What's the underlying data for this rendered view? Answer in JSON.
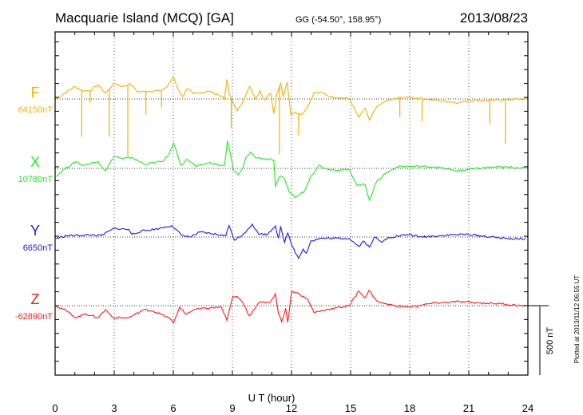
{
  "header": {
    "station": "Macquarie Island (MCQ)  [GA]",
    "coords": "GG (-54.50°, 158.95°)",
    "date": "2013/08/23"
  },
  "footer_note": "Plotted at 2013/11/12 06:55 UT",
  "chart_data": {
    "type": "line",
    "title": "Macquarie Island (MCQ)  [GA]",
    "xlabel": "U T (hour)",
    "xlim": [
      0,
      24
    ],
    "xticks": [
      "0",
      "3",
      "6",
      "9",
      "12",
      "15",
      "18",
      "21",
      "24"
    ],
    "scale_bar": {
      "label": "500 nT",
      "value_nT": 500
    },
    "grid": "dotted vertical every 3 h, dotted baseline per component",
    "y_units": "nT deviation from baseline",
    "series": [
      {
        "name": "F",
        "baseline_label": "64150nT",
        "baseline": 64150,
        "color": "#f5b000",
        "points": [
          [
            0.05,
            0
          ],
          [
            0.99,
            89
          ],
          [
            1.39,
            60
          ],
          [
            1.78,
            60
          ],
          [
            2.17,
            102
          ],
          [
            2.56,
            41
          ],
          [
            3.0,
            114
          ],
          [
            3.42,
            89
          ],
          [
            3.82,
            108
          ],
          [
            4.21,
            50
          ],
          [
            4.52,
            54
          ],
          [
            5.38,
            60
          ],
          [
            5.7,
            89
          ],
          [
            6.01,
            162
          ],
          [
            6.24,
            69
          ],
          [
            6.48,
            17
          ],
          [
            6.71,
            73
          ],
          [
            7.03,
            37
          ],
          [
            7.81,
            56
          ],
          [
            8.44,
            21
          ],
          [
            8.6,
            0
          ],
          [
            8.72,
            141
          ],
          [
            8.83,
            41
          ],
          [
            9.07,
            -37
          ],
          [
            9.25,
            -85
          ],
          [
            9.54,
            -17
          ],
          [
            9.88,
            89
          ],
          [
            10.16,
            2
          ],
          [
            10.4,
            60
          ],
          [
            10.63,
            -8
          ],
          [
            10.95,
            41
          ],
          [
            11.1,
            -104
          ],
          [
            11.26,
            41
          ],
          [
            11.45,
            118
          ],
          [
            11.57,
            21
          ],
          [
            11.78,
            121
          ],
          [
            11.97,
            -114
          ],
          [
            12.2,
            -95
          ],
          [
            12.51,
            -114
          ],
          [
            12.83,
            -56
          ],
          [
            13.14,
            44
          ],
          [
            13.61,
            44
          ],
          [
            13.92,
            17
          ],
          [
            14.94,
            2
          ],
          [
            15.41,
            -133
          ],
          [
            15.73,
            -66
          ],
          [
            15.96,
            -152
          ],
          [
            16.28,
            -66
          ],
          [
            16.75,
            -17
          ],
          [
            17.37,
            6
          ],
          [
            18.0,
            12
          ],
          [
            19.25,
            -8
          ],
          [
            20.51,
            -27
          ],
          [
            20.98,
            -12
          ],
          [
            22.23,
            -10
          ],
          [
            23.8,
            0
          ],
          [
            24,
            6
          ]
        ],
        "spikes": [
          [
            1.35,
            -272
          ],
          [
            1.78,
            -27
          ],
          [
            2.75,
            -272
          ],
          [
            3.69,
            -413
          ],
          [
            4.61,
            -114
          ],
          [
            5.4,
            -62
          ],
          [
            8.94,
            -210
          ],
          [
            11.39,
            -400
          ],
          [
            12.36,
            -259
          ],
          [
            17.5,
            -129
          ],
          [
            18.63,
            -162
          ],
          [
            22.07,
            -181
          ],
          [
            22.86,
            -322
          ]
        ]
      },
      {
        "name": "X",
        "baseline_label": "10780nT",
        "baseline": 10780,
        "color": "#22e822",
        "points": [
          [
            0.05,
            -56
          ],
          [
            0.45,
            -8
          ],
          [
            1.07,
            50
          ],
          [
            1.39,
            21
          ],
          [
            2.17,
            50
          ],
          [
            2.56,
            -17
          ],
          [
            3.0,
            89
          ],
          [
            3.42,
            69
          ],
          [
            3.89,
            79
          ],
          [
            4.52,
            31
          ],
          [
            5.46,
            50
          ],
          [
            5.77,
            98
          ],
          [
            6.01,
            183
          ],
          [
            6.4,
            21
          ],
          [
            6.71,
            66
          ],
          [
            7.18,
            12
          ],
          [
            7.81,
            41
          ],
          [
            8.44,
            21
          ],
          [
            8.6,
            21
          ],
          [
            8.75,
            199
          ],
          [
            9.07,
            -17
          ],
          [
            9.3,
            -46
          ],
          [
            9.54,
            2
          ],
          [
            9.69,
            79
          ],
          [
            9.93,
            118
          ],
          [
            10.16,
            79
          ],
          [
            10.63,
            69
          ],
          [
            11.1,
            60
          ],
          [
            11.18,
            -133
          ],
          [
            11.42,
            -56
          ],
          [
            11.65,
            -75
          ],
          [
            11.89,
            -170
          ],
          [
            12.2,
            -210
          ],
          [
            12.36,
            -195
          ],
          [
            12.67,
            -160
          ],
          [
            12.98,
            -56
          ],
          [
            13.38,
            21
          ],
          [
            13.92,
            -8
          ],
          [
            14.94,
            -12
          ],
          [
            15.34,
            -123
          ],
          [
            15.73,
            -114
          ],
          [
            15.96,
            -230
          ],
          [
            16.28,
            -104
          ],
          [
            16.75,
            -37
          ],
          [
            17.37,
            12
          ],
          [
            17.84,
            15
          ],
          [
            19.25,
            12
          ],
          [
            20.35,
            -17
          ],
          [
            20.98,
            -8
          ],
          [
            22.23,
            10
          ],
          [
            23.8,
            6
          ],
          [
            24,
            8
          ]
        ],
        "spikes": []
      },
      {
        "name": "Y",
        "baseline_label": "6650nT",
        "baseline": 6650,
        "color": "#1a1ae8",
        "points": [
          [
            0.05,
            -10
          ],
          [
            0.6,
            10
          ],
          [
            1.86,
            15
          ],
          [
            2.33,
            10
          ],
          [
            3.0,
            62
          ],
          [
            3.74,
            54
          ],
          [
            3.89,
            19
          ],
          [
            4.36,
            42
          ],
          [
            5.3,
            62
          ],
          [
            5.93,
            83
          ],
          [
            6.4,
            15
          ],
          [
            6.87,
            0
          ],
          [
            7.34,
            35
          ],
          [
            7.97,
            23
          ],
          [
            8.67,
            10
          ],
          [
            8.83,
            83
          ],
          [
            9.11,
            -23
          ],
          [
            9.54,
            19
          ],
          [
            9.77,
            54
          ],
          [
            10.01,
            93
          ],
          [
            10.32,
            23
          ],
          [
            10.79,
            19
          ],
          [
            11.18,
            81
          ],
          [
            11.34,
            -10
          ],
          [
            11.45,
            77
          ],
          [
            11.65,
            -39
          ],
          [
            11.81,
            29
          ],
          [
            12.04,
            -68
          ],
          [
            12.36,
            -154
          ],
          [
            12.59,
            -87
          ],
          [
            12.75,
            -116
          ],
          [
            12.98,
            -29
          ],
          [
            13.45,
            -10
          ],
          [
            14.94,
            -10
          ],
          [
            15.41,
            -68
          ],
          [
            15.65,
            -29
          ],
          [
            15.96,
            -73
          ],
          [
            16.2,
            0
          ],
          [
            16.59,
            -39
          ],
          [
            16.9,
            -4
          ],
          [
            18.0,
            19
          ],
          [
            18.47,
            0
          ],
          [
            20.04,
            15
          ],
          [
            20.98,
            19
          ],
          [
            22.39,
            -4
          ],
          [
            23.49,
            -15
          ],
          [
            23.88,
            -10
          ]
        ],
        "spikes": []
      },
      {
        "name": "Z",
        "baseline_label": "-62890nT",
        "baseline": -62890,
        "color": "#ff1a1a",
        "points": [
          [
            0.05,
            0
          ],
          [
            0.6,
            -39
          ],
          [
            1.07,
            -87
          ],
          [
            1.54,
            -58
          ],
          [
            2.17,
            -87
          ],
          [
            2.56,
            -29
          ],
          [
            2.95,
            -87
          ],
          [
            3.74,
            -87
          ],
          [
            4.52,
            -29
          ],
          [
            4.99,
            -39
          ],
          [
            5.77,
            -87
          ],
          [
            6.01,
            -125
          ],
          [
            6.32,
            -10
          ],
          [
            6.64,
            -62
          ],
          [
            7.03,
            -29
          ],
          [
            7.66,
            -19
          ],
          [
            8.44,
            -10
          ],
          [
            8.72,
            -106
          ],
          [
            9.03,
            68
          ],
          [
            9.3,
            58
          ],
          [
            9.54,
            19
          ],
          [
            9.85,
            -73
          ],
          [
            10.32,
            19
          ],
          [
            10.95,
            29
          ],
          [
            11.18,
            87
          ],
          [
            11.34,
            -58
          ],
          [
            11.5,
            -116
          ],
          [
            11.7,
            -19
          ],
          [
            11.81,
            -121
          ],
          [
            12.01,
            106
          ],
          [
            12.36,
            87
          ],
          [
            12.83,
            42
          ],
          [
            13.14,
            -48
          ],
          [
            13.77,
            -29
          ],
          [
            14.94,
            0
          ],
          [
            15.41,
            106
          ],
          [
            15.73,
            58
          ],
          [
            15.93,
            110
          ],
          [
            16.28,
            42
          ],
          [
            16.59,
            19
          ],
          [
            17.22,
            0
          ],
          [
            18.0,
            -10
          ],
          [
            19.25,
            19
          ],
          [
            20.51,
            29
          ],
          [
            21.6,
            19
          ],
          [
            22.55,
            15
          ],
          [
            23.88,
            -4
          ]
        ],
        "spikes": []
      }
    ]
  }
}
